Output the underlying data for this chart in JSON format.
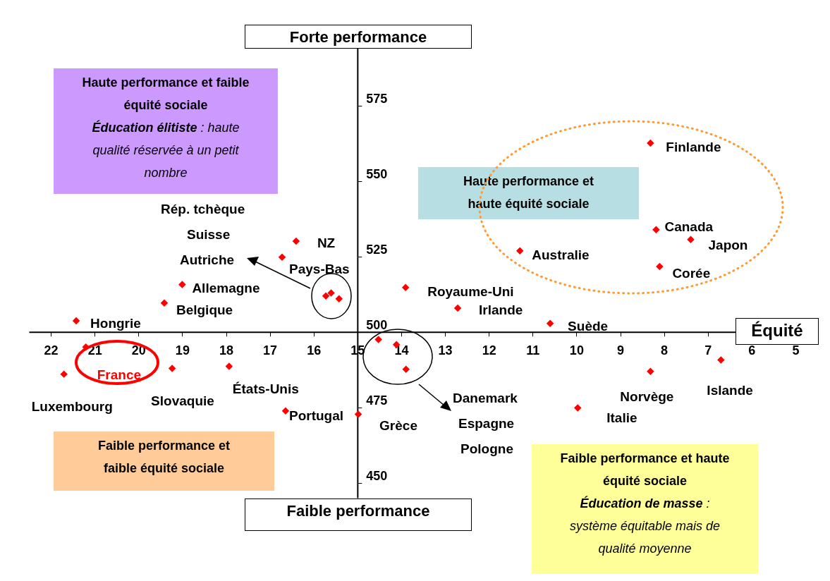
{
  "chart_data": {
    "type": "scatter",
    "xlabel": "Équité",
    "marker": "diamond",
    "grid": false,
    "xlim": [
      22.5,
      4.5
    ],
    "ylim": [
      445,
      600
    ],
    "xticks": [
      22,
      21,
      20,
      19,
      18,
      17,
      16,
      15,
      14,
      13,
      12,
      11,
      10,
      9,
      8,
      7,
      6,
      5
    ],
    "yticks": [
      450,
      475,
      500,
      525,
      550,
      575
    ],
    "series": [
      {
        "color": "#ff0000",
        "x": [
          21.42,
          19.41,
          19.0,
          21.7,
          21.2,
          19.23,
          17.93,
          16.64,
          14.98,
          15.72,
          15.6,
          15.42,
          16.4,
          16.72,
          13.9,
          12.71,
          10.6,
          11.29,
          8.31,
          8.18,
          7.39,
          8.1,
          14.52,
          14.11,
          13.89,
          9.97,
          8.31,
          6.7
        ],
        "values": [
          503.7,
          509.6,
          515.7,
          486,
          495,
          487.9,
          488.6,
          473.8,
          472.7,
          511.9,
          512.9,
          511.0,
          530.1,
          524.8,
          514.7,
          507.9,
          502.8,
          526.9,
          562.6,
          533.9,
          530.6,
          521.7,
          497.5,
          495.8,
          487.6,
          474.8,
          486.9,
          490.7
        ]
      }
    ],
    "annotations": [
      "Forte performance",
      "Faible performance",
      "Haute performance et faible équité sociale",
      "Éducation élitiste",
      " : haute qualité réservée à un petit nombre",
      "Haute performance et haute équité sociale",
      "Faible performance et faible équité sociale",
      "Faible performance et haute équité sociale",
      "Éducation de masse",
      " : système équitable mais de qualité moyenne",
      "Rép. tchèque",
      "Suisse",
      "Autriche",
      "Danemark",
      "Espagne",
      "Pologne",
      {
        "text": "Hongrie",
        "x": 21.42,
        "y": 503.7
      },
      {
        "text": "Belgique",
        "x": 19.41,
        "y": 509.6
      },
      {
        "text": "Allemagne",
        "x": 19.0,
        "y": 515.7
      },
      {
        "text": "Luxembourg",
        "x": 21.7,
        "y": 486
      },
      {
        "text": "France",
        "x": 21.2,
        "y": 495
      },
      {
        "text": "Slovaquie",
        "x": 19.23,
        "y": 487.9
      },
      {
        "text": "États-Unis",
        "x": 17.93,
        "y": 488.6
      },
      {
        "text": "Portugal",
        "x": 16.64,
        "y": 473.8
      },
      {
        "text": "Grèce",
        "x": 14.98,
        "y": 472.7
      },
      {
        "text": "NZ",
        "x": 16.4,
        "y": 530.1
      },
      {
        "text": "Pays-Bas",
        "x": 16.72,
        "y": 524.8
      },
      {
        "text": "Royaume-Uni",
        "x": 13.9,
        "y": 514.7
      },
      {
        "text": "Irlande",
        "x": 12.71,
        "y": 507.9
      },
      {
        "text": "Suède",
        "x": 10.6,
        "y": 502.8
      },
      {
        "text": "Australie",
        "x": 11.29,
        "y": 526.9
      },
      {
        "text": "Finlande",
        "x": 8.31,
        "y": 562.6
      },
      {
        "text": "Canada",
        "x": 8.18,
        "y": 533.9
      },
      {
        "text": "Japon",
        "x": 7.39,
        "y": 530.6
      },
      {
        "text": "Corée",
        "x": 8.1,
        "y": 521.7
      },
      {
        "text": "Italie",
        "x": 9.97,
        "y": 474.8
      },
      {
        "text": "Norvège",
        "x": 8.31,
        "y": 486.9
      },
      {
        "text": "Islande",
        "x": 6.7,
        "y": 490.7
      }
    ]
  }
}
